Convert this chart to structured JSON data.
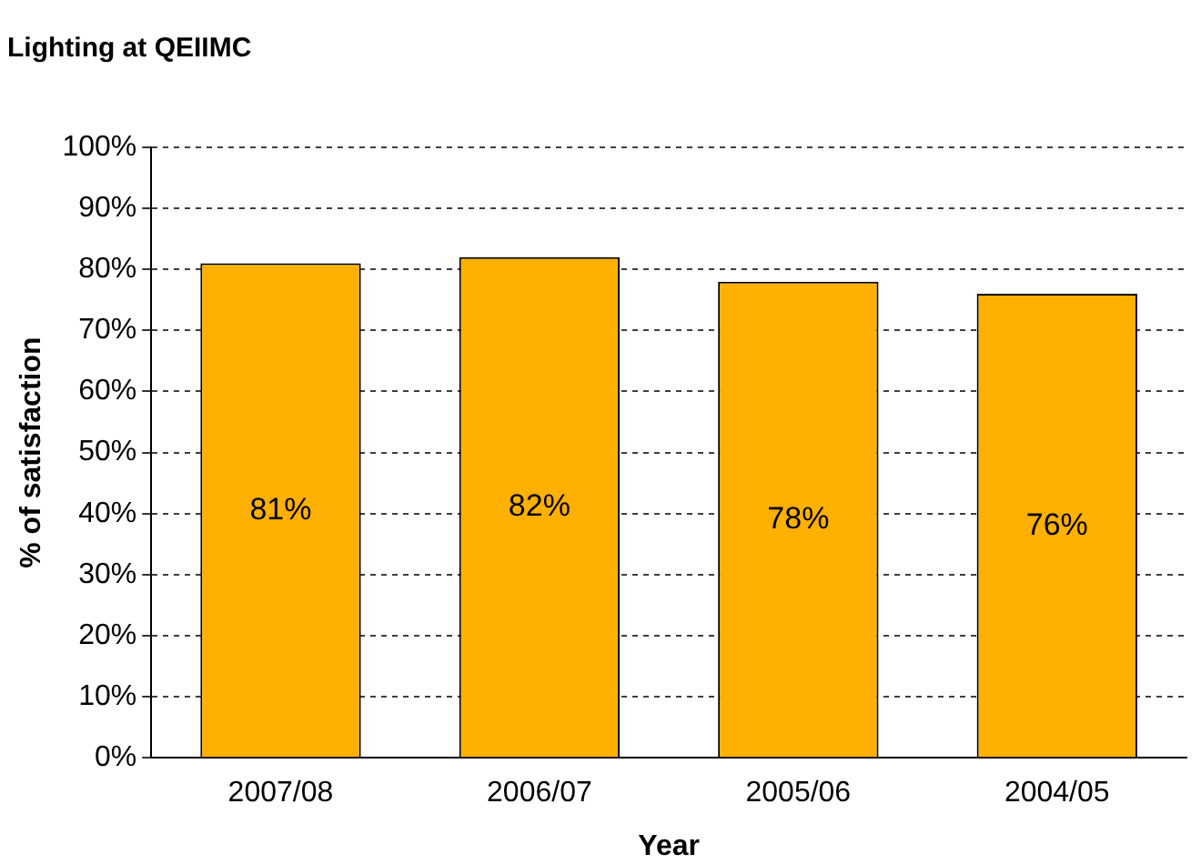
{
  "chart_data": {
    "type": "bar",
    "title": "Lighting at QEIIMC",
    "xlabel": "Year",
    "ylabel": "% of satisfaction",
    "categories": [
      "2007/08",
      "2006/07",
      "2005/06",
      "2004/05"
    ],
    "values": [
      81,
      82,
      78,
      76
    ],
    "value_labels": [
      "81%",
      "82%",
      "78%",
      "76%"
    ],
    "color": "#ffb000",
    "ylim": [
      0,
      100
    ],
    "yticks": [
      {
        "value": 0,
        "label": "0%"
      },
      {
        "value": 10,
        "label": "10%"
      },
      {
        "value": 20,
        "label": "20%"
      },
      {
        "value": 30,
        "label": "30%"
      },
      {
        "value": 40,
        "label": "40%"
      },
      {
        "value": 50,
        "label": "50%"
      },
      {
        "value": 60,
        "label": "60%"
      },
      {
        "value": 70,
        "label": "70%"
      },
      {
        "value": 80,
        "label": "80%"
      },
      {
        "value": 90,
        "label": "90%"
      },
      {
        "value": 100,
        "label": "100%"
      }
    ],
    "grid": "y",
    "legend": false
  }
}
